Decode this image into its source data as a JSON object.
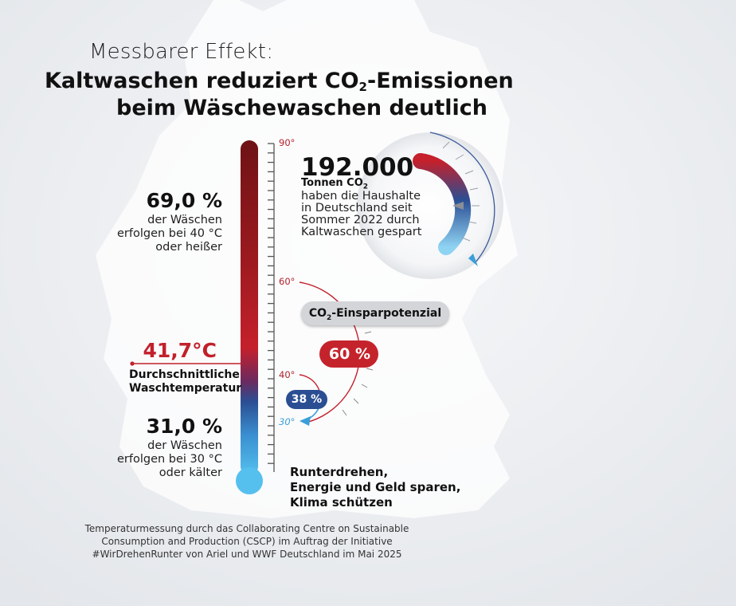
{
  "kicker": "Messbarer Effekt:",
  "title": {
    "line1_a": "Kaltwaschen reduziert CO",
    "line1_sub": "2",
    "line1_b": "-Emissionen",
    "line2": "beim Wäschewaschen deutlich"
  },
  "hot_share": {
    "value": "69,0 %",
    "text_lines": [
      "der Wäschen",
      "erfolgen bei 40 °C",
      "oder heißer"
    ]
  },
  "cold_share": {
    "value": "31,0 %",
    "text_lines": [
      "der Wäschen",
      "erfolgen bei 30 °C",
      "oder kälter"
    ]
  },
  "avg_temp": {
    "value": "41,7°C",
    "label_lines": [
      "Durchschnittliche",
      "Waschtemperatur"
    ]
  },
  "thermometer_ticks": {
    "t90": "90°",
    "t60": "60°",
    "t40": "40°",
    "t30": "30°"
  },
  "savings": {
    "number": "192.000",
    "unit_a": "Tonnen CO",
    "unit_sub": "2",
    "text_lines": [
      "haben die Haushalte",
      "in Deutschland seit",
      "Sommer 2022 durch",
      "Kaltwaschen gespart"
    ]
  },
  "potential": {
    "label_a": "CO",
    "label_sub": "2",
    "label_b": "-Einsparpotenzial",
    "pct_60": "60 %",
    "pct_38": "38 %"
  },
  "cta_lines": [
    "Runterdrehen,",
    "Energie und Geld sparen,",
    "Klima schützen"
  ],
  "source_lines": [
    "Temperaturmessung durch das Collaborating Centre on Sustainable",
    "Consumption and Production (CSCP) im Auftrag der Initiative",
    "#WirDrehenRunter von Ariel und WWF Deutschland im Mai 2025"
  ],
  "colors": {
    "hot": "#c2202b",
    "dark_red": "#7d1418",
    "mid_blue": "#2b4e93",
    "cold": "#4fb8ea"
  }
}
